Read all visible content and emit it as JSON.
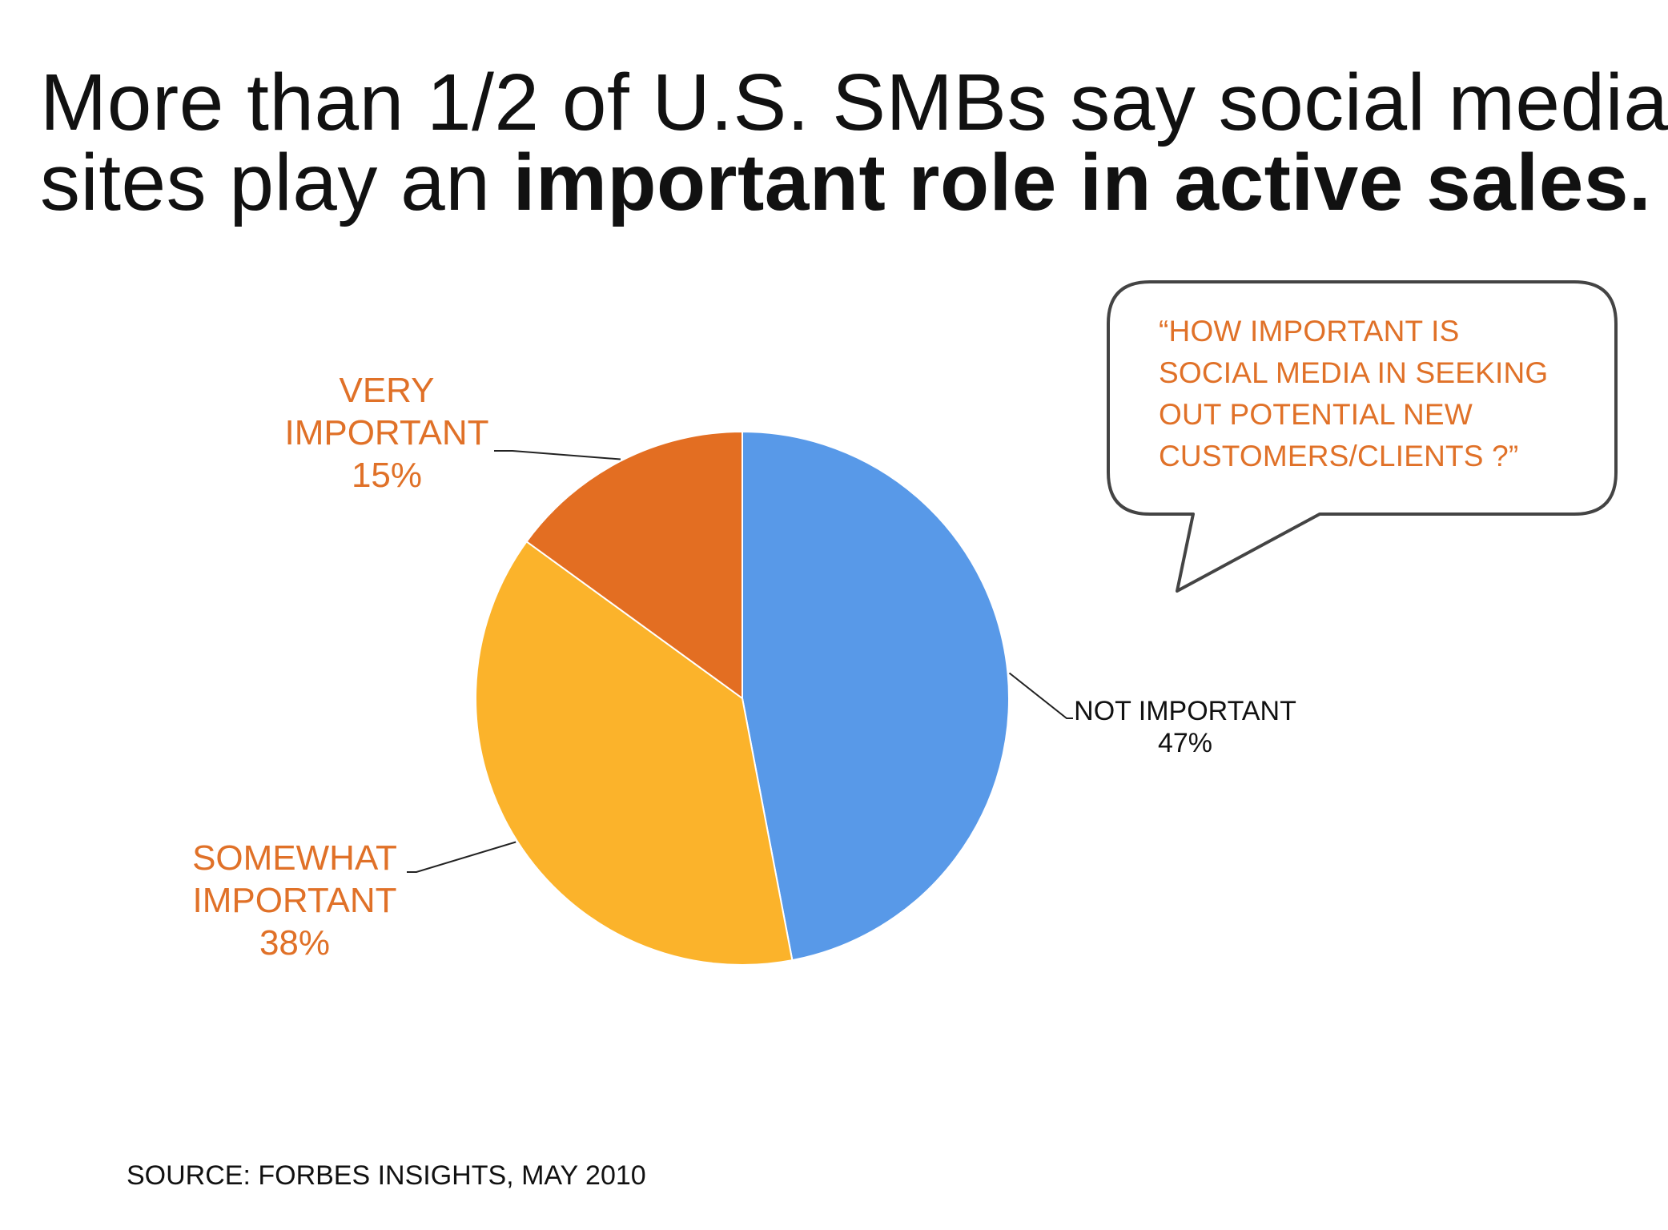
{
  "title": {
    "line1": "More than 1/2 of U.S. SMBs say social media",
    "line2_regular": "sites play an ",
    "line2_bold": "important role in active sales."
  },
  "callout": {
    "lines": [
      "“HOW IMPORTANT IS",
      "SOCIAL MEDIA IN SEEKING",
      "OUT POTENTIAL NEW",
      "CUSTOMERS/CLIENTS ?”"
    ]
  },
  "source": "SOURCE: FORBES INSIGHTS, MAY 2010",
  "colors": {
    "not_important": "#5899e8",
    "somewhat_important": "#fbb32b",
    "very_important": "#e36e22",
    "label_orange": "#e07128",
    "label_dark": "#111111"
  },
  "chart_data": {
    "type": "pie",
    "start": "12 o'clock",
    "direction": "clockwise",
    "slices": [
      {
        "label_lines": [
          "NOT IMPORTANT"
        ],
        "pct_label": "47%",
        "value": 47,
        "color": "#5899e8"
      },
      {
        "label_lines": [
          "SOMEWHAT",
          "IMPORTANT"
        ],
        "pct_label": "38%",
        "value": 38,
        "color": "#fbb32b"
      },
      {
        "label_lines": [
          "VERY",
          "IMPORTANT"
        ],
        "pct_label": "15%",
        "value": 15,
        "color": "#e36e22"
      }
    ]
  }
}
